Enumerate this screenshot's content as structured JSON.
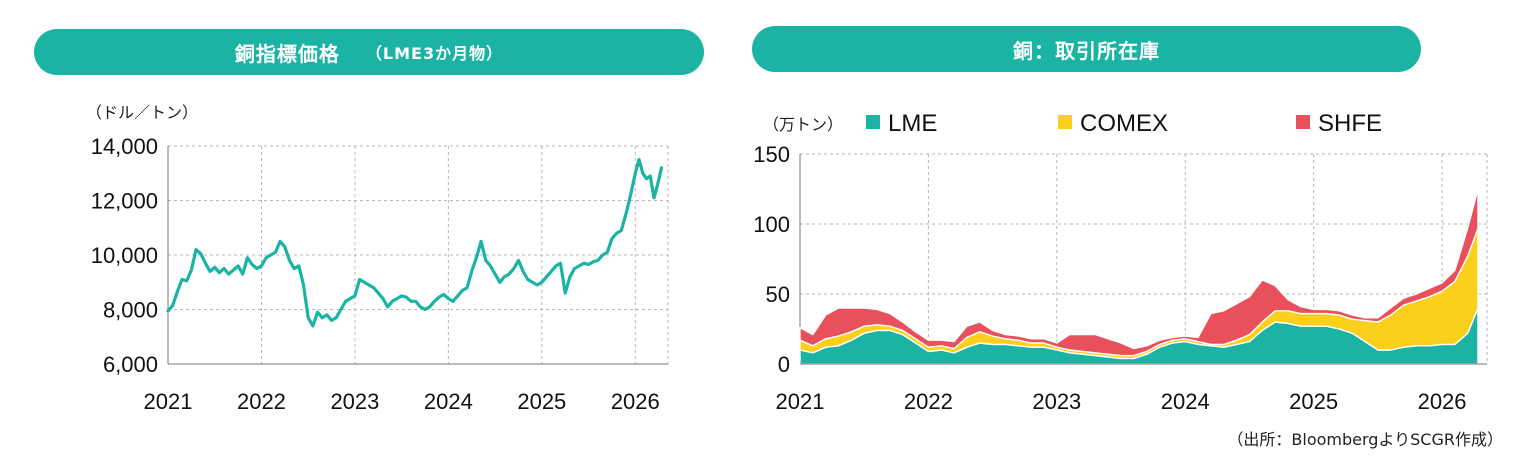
{
  "left_panel": {
    "title": "銅指標価格",
    "subtitle": "（LME3か月物）"
  },
  "right_panel": {
    "title": "銅：取引所在庫"
  },
  "source_note": "（出所：BloombergよりSCGR作成）",
  "colors": {
    "accent": "#1bb3a3",
    "lme": "#1bb3a3",
    "comex": "#fad01c",
    "shfe": "#e8505b",
    "grid": "#b7b7b7"
  },
  "chart_data": [
    {
      "type": "line",
      "unit_label": "（ドル／トン）",
      "ylim": [
        6000,
        14000
      ],
      "yticks": [
        "14,000",
        "12,000",
        "10,000",
        "8,000",
        "6,000"
      ],
      "yticks_values": [
        14000,
        12000,
        10000,
        8000,
        6000
      ],
      "xlim": [
        2021.0,
        2026.35
      ],
      "xticks": [
        "2021",
        "2022",
        "2023",
        "2024",
        "2025",
        "2026"
      ],
      "grid": true,
      "series": [
        {
          "color": "#1bb3a3",
          "points": [
            [
              2021.0,
              7950
            ],
            [
              2021.05,
              8150
            ],
            [
              2021.1,
              8650
            ],
            [
              2021.15,
              9100
            ],
            [
              2021.2,
              9050
            ],
            [
              2021.25,
              9450
            ],
            [
              2021.3,
              10200
            ],
            [
              2021.35,
              10050
            ],
            [
              2021.4,
              9700
            ],
            [
              2021.45,
              9400
            ],
            [
              2021.5,
              9550
            ],
            [
              2021.55,
              9350
            ],
            [
              2021.6,
              9500
            ],
            [
              2021.65,
              9300
            ],
            [
              2021.7,
              9450
            ],
            [
              2021.75,
              9600
            ],
            [
              2021.8,
              9300
            ],
            [
              2021.85,
              9900
            ],
            [
              2021.9,
              9650
            ],
            [
              2021.95,
              9500
            ],
            [
              2022.0,
              9600
            ],
            [
              2022.05,
              9900
            ],
            [
              2022.1,
              10000
            ],
            [
              2022.15,
              10100
            ],
            [
              2022.2,
              10500
            ],
            [
              2022.25,
              10300
            ],
            [
              2022.3,
              9800
            ],
            [
              2022.35,
              9500
            ],
            [
              2022.4,
              9600
            ],
            [
              2022.45,
              8900
            ],
            [
              2022.5,
              7700
            ],
            [
              2022.55,
              7400
            ],
            [
              2022.6,
              7900
            ],
            [
              2022.65,
              7700
            ],
            [
              2022.7,
              7800
            ],
            [
              2022.75,
              7600
            ],
            [
              2022.8,
              7700
            ],
            [
              2022.85,
              8000
            ],
            [
              2022.9,
              8300
            ],
            [
              2022.95,
              8400
            ],
            [
              2023.0,
              8500
            ],
            [
              2023.05,
              9100
            ],
            [
              2023.1,
              9000
            ],
            [
              2023.15,
              8900
            ],
            [
              2023.2,
              8800
            ],
            [
              2023.25,
              8600
            ],
            [
              2023.3,
              8400
            ],
            [
              2023.35,
              8100
            ],
            [
              2023.4,
              8300
            ],
            [
              2023.45,
              8400
            ],
            [
              2023.5,
              8500
            ],
            [
              2023.55,
              8450
            ],
            [
              2023.6,
              8300
            ],
            [
              2023.65,
              8300
            ],
            [
              2023.7,
              8100
            ],
            [
              2023.75,
              8000
            ],
            [
              2023.8,
              8100
            ],
            [
              2023.85,
              8300
            ],
            [
              2023.9,
              8450
            ],
            [
              2023.95,
              8550
            ],
            [
              2024.0,
              8400
            ],
            [
              2024.05,
              8300
            ],
            [
              2024.1,
              8500
            ],
            [
              2024.15,
              8700
            ],
            [
              2024.2,
              8800
            ],
            [
              2024.25,
              9400
            ],
            [
              2024.3,
              9900
            ],
            [
              2024.35,
              10500
            ],
            [
              2024.4,
              9800
            ],
            [
              2024.45,
              9600
            ],
            [
              2024.5,
              9300
            ],
            [
              2024.55,
              9000
            ],
            [
              2024.6,
              9200
            ],
            [
              2024.65,
              9300
            ],
            [
              2024.7,
              9500
            ],
            [
              2024.75,
              9800
            ],
            [
              2024.8,
              9400
            ],
            [
              2024.85,
              9100
            ],
            [
              2024.9,
              9000
            ],
            [
              2024.95,
              8900
            ],
            [
              2025.0,
              9000
            ],
            [
              2025.05,
              9200
            ],
            [
              2025.1,
              9400
            ],
            [
              2025.15,
              9600
            ],
            [
              2025.2,
              9700
            ],
            [
              2025.25,
              8600
            ],
            [
              2025.3,
              9200
            ],
            [
              2025.35,
              9500
            ],
            [
              2025.4,
              9600
            ],
            [
              2025.45,
              9700
            ],
            [
              2025.5,
              9650
            ],
            [
              2025.55,
              9750
            ],
            [
              2025.6,
              9800
            ],
            [
              2025.65,
              10000
            ],
            [
              2025.7,
              10100
            ],
            [
              2025.75,
              10600
            ],
            [
              2025.8,
              10800
            ],
            [
              2025.85,
              10900
            ],
            [
              2025.9,
              11500
            ],
            [
              2025.95,
              12200
            ],
            [
              2026.0,
              13000
            ],
            [
              2026.04,
              13500
            ],
            [
              2026.08,
              13000
            ],
            [
              2026.12,
              12800
            ],
            [
              2026.16,
              12900
            ],
            [
              2026.2,
              12100
            ],
            [
              2026.24,
              12600
            ],
            [
              2026.28,
              13200
            ]
          ]
        }
      ]
    },
    {
      "type": "area",
      "stacked": true,
      "unit_label": "（万トン）",
      "ylim": [
        0,
        150
      ],
      "yticks": [
        "150",
        "100",
        "50",
        "0"
      ],
      "yticks_values": [
        150,
        100,
        50,
        0
      ],
      "xlim": [
        2021.0,
        2026.35
      ],
      "xticks": [
        "2021",
        "2022",
        "2023",
        "2024",
        "2025",
        "2026"
      ],
      "grid": true,
      "legend_position": "top",
      "x": [
        2021.0,
        2021.1,
        2021.2,
        2021.3,
        2021.4,
        2021.5,
        2021.6,
        2021.7,
        2021.8,
        2021.9,
        2022.0,
        2022.1,
        2022.2,
        2022.3,
        2022.4,
        2022.5,
        2022.6,
        2022.7,
        2022.8,
        2022.9,
        2023.0,
        2023.1,
        2023.2,
        2023.3,
        2023.4,
        2023.5,
        2023.6,
        2023.7,
        2023.8,
        2023.9,
        2024.0,
        2024.1,
        2024.2,
        2024.3,
        2024.4,
        2024.5,
        2024.6,
        2024.7,
        2024.8,
        2024.9,
        2025.0,
        2025.1,
        2025.2,
        2025.3,
        2025.4,
        2025.5,
        2025.6,
        2025.7,
        2025.8,
        2025.9,
        2026.0,
        2026.1,
        2026.2,
        2026.28
      ],
      "series": [
        {
          "name": "LME",
          "color": "#1bb3a3",
          "values": [
            10,
            8,
            12,
            13,
            17,
            22,
            24,
            24,
            21,
            15,
            9,
            10,
            8,
            12,
            15,
            14,
            14,
            13,
            12,
            12,
            10,
            8,
            7,
            6,
            5,
            4,
            4,
            7,
            12,
            15,
            16,
            14,
            13,
            12,
            14,
            16,
            24,
            30,
            29,
            27,
            27,
            27,
            25,
            22,
            16,
            10,
            10,
            12,
            13,
            13,
            14,
            14,
            22,
            40
          ]
        },
        {
          "name": "COMEX",
          "color": "#fad01c",
          "values": [
            7,
            5,
            6,
            7,
            6,
            5,
            4,
            3,
            3,
            3,
            3,
            3,
            3,
            7,
            8,
            6,
            4,
            4,
            3,
            3,
            2,
            2,
            2,
            2,
            2,
            2,
            2,
            2,
            2,
            2,
            2,
            2,
            1,
            2,
            3,
            5,
            6,
            8,
            9,
            9,
            9,
            9,
            10,
            10,
            15,
            20,
            25,
            30,
            32,
            35,
            38,
            45,
            55,
            57
          ]
        },
        {
          "name": "SHFE",
          "color": "#e8505b",
          "values": [
            9,
            8,
            17,
            20,
            17,
            13,
            11,
            9,
            6,
            5,
            5,
            4,
            5,
            8,
            7,
            4,
            3,
            3,
            3,
            3,
            3,
            11,
            12,
            13,
            11,
            9,
            5,
            4,
            3,
            2,
            2,
            3,
            22,
            24,
            26,
            27,
            30,
            18,
            8,
            5,
            3,
            3,
            3,
            3,
            2,
            3,
            5,
            5,
            5,
            6,
            6,
            8,
            20,
            28
          ]
        }
      ]
    }
  ]
}
